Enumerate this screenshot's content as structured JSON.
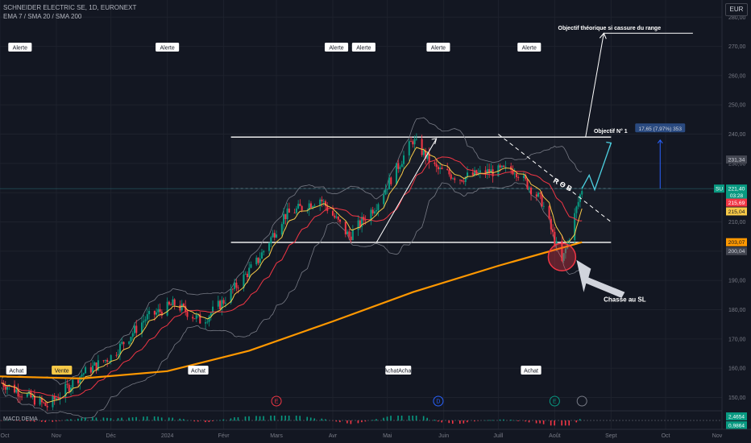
{
  "header": {
    "title": "SCHNEIDER ELECTRIC SE, 1D, EURONEXT",
    "indicators": "EMA 7 / SMA 20 / SMA 200"
  },
  "currency": "EUR",
  "ticker": "SU",
  "price_tags": {
    "current": "221,40",
    "countdown": "03:28",
    "ema7": "215,69",
    "sma20": "215,04",
    "sma200": "203,07",
    "bb_upper": "231,34",
    "bb_lower": "200,04"
  },
  "macd": {
    "label": "MACD DEMA",
    "value1": "2,4654",
    "value2": "0,9864"
  },
  "colors": {
    "bg": "#131722",
    "up": "#089981",
    "down": "#f23645",
    "ema": "#f7c948",
    "sma20": "#f23645",
    "sma200": "#ff9800",
    "bb": "#787b86",
    "projection": "#4dd0e1",
    "tag_blue": "#2962ff"
  },
  "annotations": {
    "alerts": [
      "Alerte",
      "Alerte",
      "Alerte",
      "Alerte",
      "Alerte",
      "Alerte"
    ],
    "buys": [
      "Achat",
      "Achat",
      "Achat",
      "Achat",
      "Achat"
    ],
    "sell": "Vente",
    "target_theoretical": "Objectif théorique si cassure du range",
    "target_1": "Objectif N° 1",
    "rob": "R O B",
    "sl_hunt": "Chasse au SL",
    "measure": "17,65 (7,97%) 353",
    "events": [
      "E",
      "D",
      "E"
    ]
  },
  "chart_data": {
    "type": "candlestick",
    "instrument": "SCHNEIDER ELECTRIC SE",
    "timeframe": "1D",
    "exchange": "EURONEXT",
    "y_ticks": [
      150,
      160,
      170,
      180,
      190,
      200,
      210,
      220,
      230,
      240,
      250,
      260,
      270,
      280
    ],
    "ylim": [
      146,
      282
    ],
    "x_ticks": [
      "Oct",
      "Nov",
      "Déc",
      "2024",
      "Févr",
      "Mars",
      "Avr",
      "Mai",
      "Juin",
      "Juill",
      "Août",
      "Sept",
      "Oct",
      "Nov"
    ],
    "range": {
      "top": 239,
      "bottom": 203,
      "mid": 221.4
    },
    "key_points": [
      {
        "date": "2023-10-02",
        "close": 155
      },
      {
        "date": "2023-10-27",
        "close": 147
      },
      {
        "date": "2023-11-15",
        "close": 158
      },
      {
        "date": "2023-12-01",
        "close": 164
      },
      {
        "date": "2023-12-20",
        "close": 177
      },
      {
        "date": "2024-01-05",
        "close": 182
      },
      {
        "date": "2024-01-20",
        "close": 176
      },
      {
        "date": "2024-02-01",
        "close": 183
      },
      {
        "date": "2024-02-20",
        "close": 197
      },
      {
        "date": "2024-03-05",
        "close": 212
      },
      {
        "date": "2024-03-25",
        "close": 218
      },
      {
        "date": "2024-04-10",
        "close": 205
      },
      {
        "date": "2024-04-25",
        "close": 216
      },
      {
        "date": "2024-05-15",
        "close": 238
      },
      {
        "date": "2024-05-28",
        "close": 228
      },
      {
        "date": "2024-06-10",
        "close": 225
      },
      {
        "date": "2024-06-25",
        "close": 227
      },
      {
        "date": "2024-07-10",
        "close": 228
      },
      {
        "date": "2024-07-25",
        "close": 217
      },
      {
        "date": "2024-08-05",
        "close": 196
      },
      {
        "date": "2024-08-16",
        "close": 221.4
      }
    ]
  }
}
